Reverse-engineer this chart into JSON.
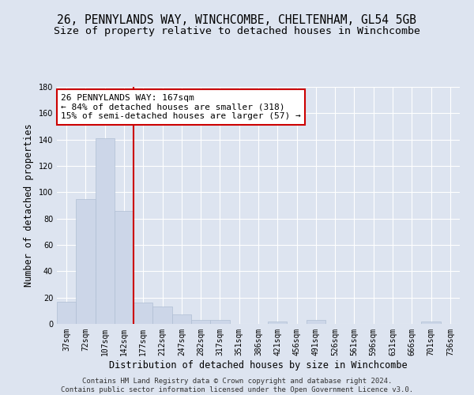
{
  "title": "26, PENNYLANDS WAY, WINCHCOMBE, CHELTENHAM, GL54 5GB",
  "subtitle": "Size of property relative to detached houses in Winchcombe",
  "xlabel": "Distribution of detached houses by size in Winchcombe",
  "ylabel": "Number of detached properties",
  "categories": [
    "37sqm",
    "72sqm",
    "107sqm",
    "142sqm",
    "177sqm",
    "212sqm",
    "247sqm",
    "282sqm",
    "317sqm",
    "351sqm",
    "386sqm",
    "421sqm",
    "456sqm",
    "491sqm",
    "526sqm",
    "561sqm",
    "596sqm",
    "631sqm",
    "666sqm",
    "701sqm",
    "736sqm"
  ],
  "values": [
    17,
    95,
    141,
    86,
    16,
    13,
    7,
    3,
    3,
    0,
    0,
    2,
    0,
    3,
    0,
    0,
    0,
    0,
    0,
    2,
    0
  ],
  "bar_color": "#ccd6e8",
  "bar_edge_color": "#b0bfd4",
  "red_line_index": 3.5,
  "annotation_text_line1": "26 PENNYLANDS WAY: 167sqm",
  "annotation_text_line2": "← 84% of detached houses are smaller (318)",
  "annotation_text_line3": "15% of semi-detached houses are larger (57) →",
  "annotation_box_color": "#ffffff",
  "annotation_box_edge": "#cc0000",
  "red_line_color": "#cc0000",
  "ylim": [
    0,
    180
  ],
  "yticks": [
    0,
    20,
    40,
    60,
    80,
    100,
    120,
    140,
    160,
    180
  ],
  "background_color": "#dde4f0",
  "grid_color": "#ffffff",
  "footer_text": "Contains HM Land Registry data © Crown copyright and database right 2024.\nContains public sector information licensed under the Open Government Licence v3.0.",
  "title_fontsize": 10.5,
  "subtitle_fontsize": 9.5,
  "xlabel_fontsize": 8.5,
  "ylabel_fontsize": 8.5,
  "tick_fontsize": 7,
  "annot_fontsize": 8,
  "footer_fontsize": 6.5
}
